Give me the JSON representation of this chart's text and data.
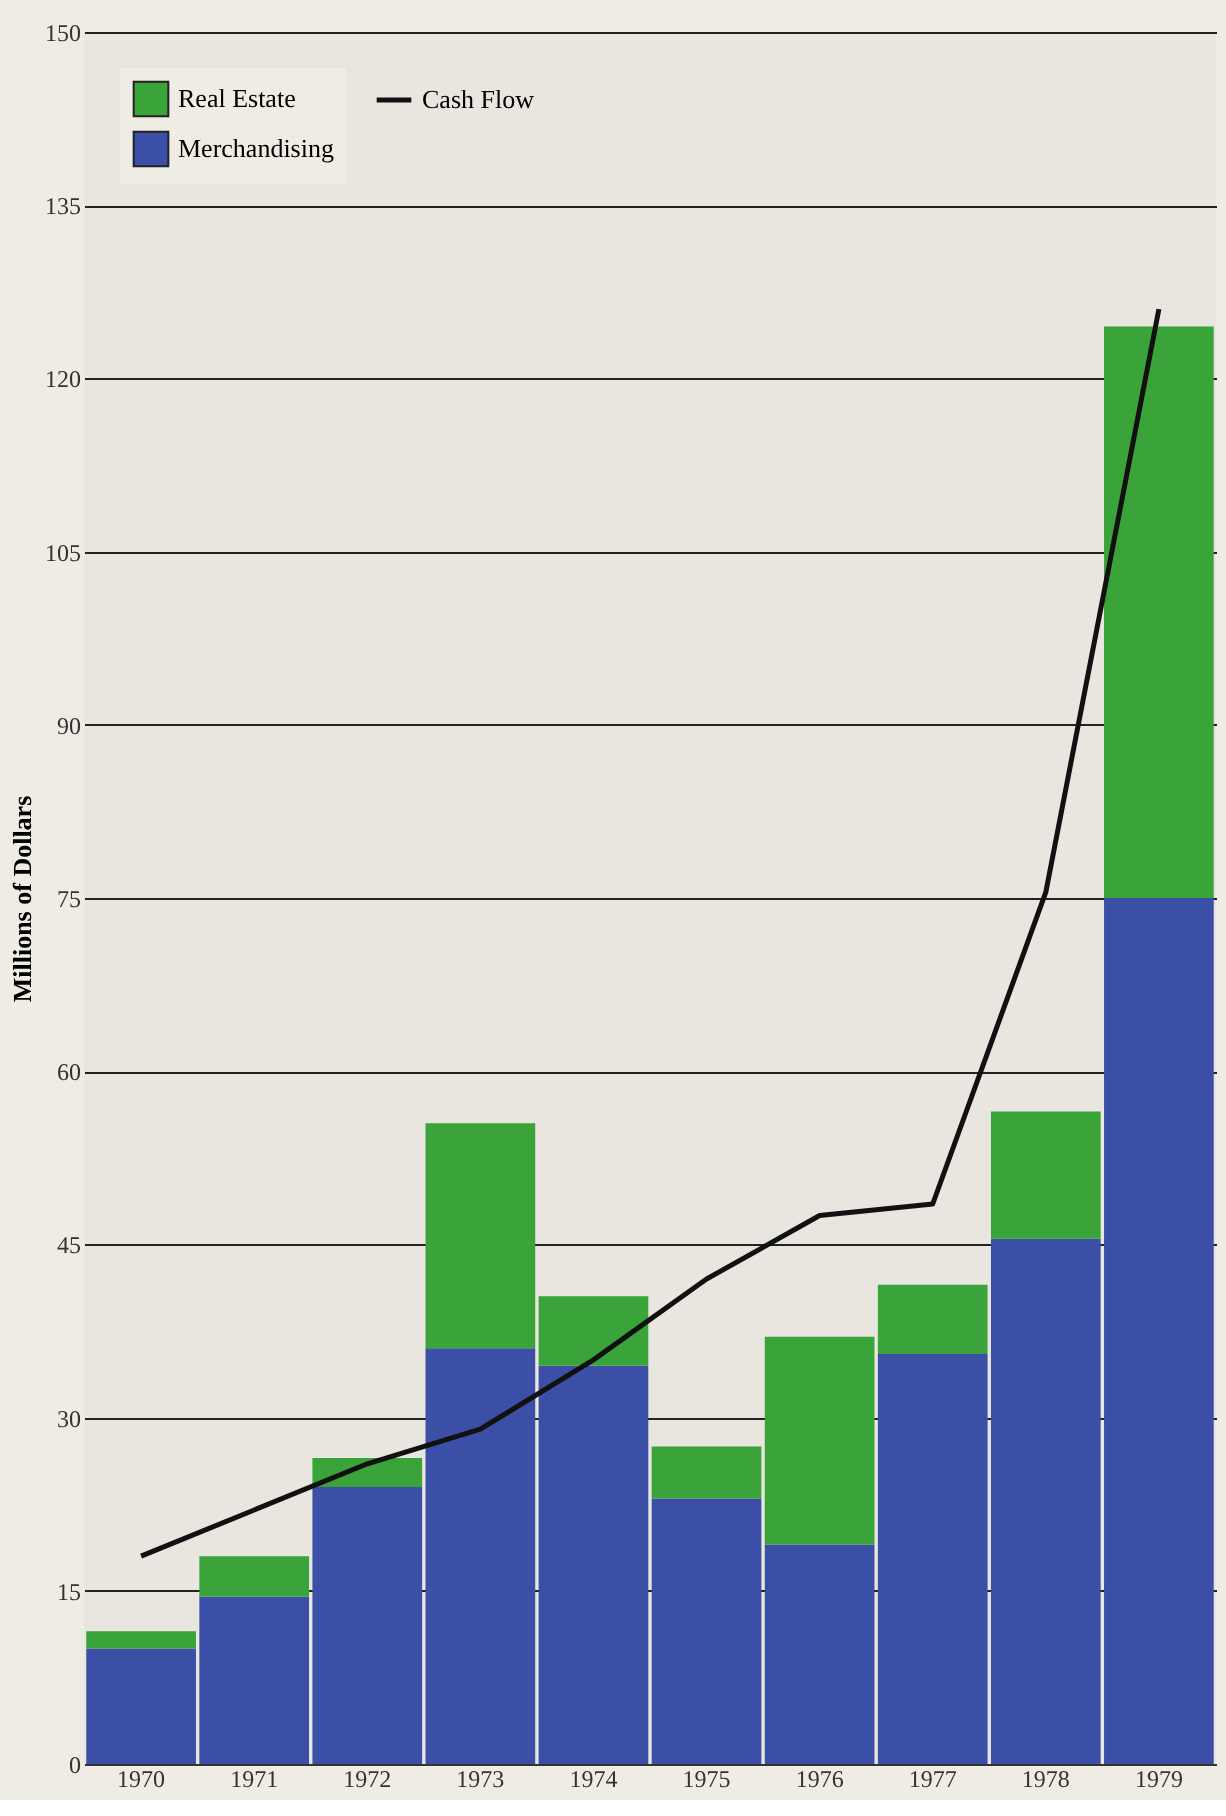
{
  "chart_data": {
    "type": "bar",
    "stacked": true,
    "ylabel": "Millions of Dollars",
    "categories": [
      "1970",
      "1971",
      "1972",
      "1973",
      "1974",
      "1975",
      "1976",
      "1977",
      "1978",
      "1979"
    ],
    "series": [
      {
        "name": "Merchandising",
        "color": "#3b4fa6",
        "values": [
          10,
          14.5,
          24,
          36,
          34.5,
          23,
          19,
          35.5,
          45.5,
          75
        ]
      },
      {
        "name": "Real Estate",
        "color": "#3aa33a",
        "values": [
          1.5,
          3.5,
          2.5,
          19.5,
          6,
          4.5,
          18,
          6,
          11,
          49.5
        ]
      },
      {
        "name": "Cash Flow",
        "type": "line",
        "color": "#111111",
        "values": [
          18,
          22,
          26,
          29,
          35,
          42,
          47.5,
          48.5,
          75.5,
          126
        ]
      }
    ],
    "ylim": [
      0,
      150
    ],
    "yticks": [
      0,
      15,
      30,
      45,
      60,
      75,
      90,
      105,
      120,
      135,
      150
    ],
    "grid": "y",
    "legend": "top left",
    "marker": "none",
    "line_style": "solid"
  }
}
